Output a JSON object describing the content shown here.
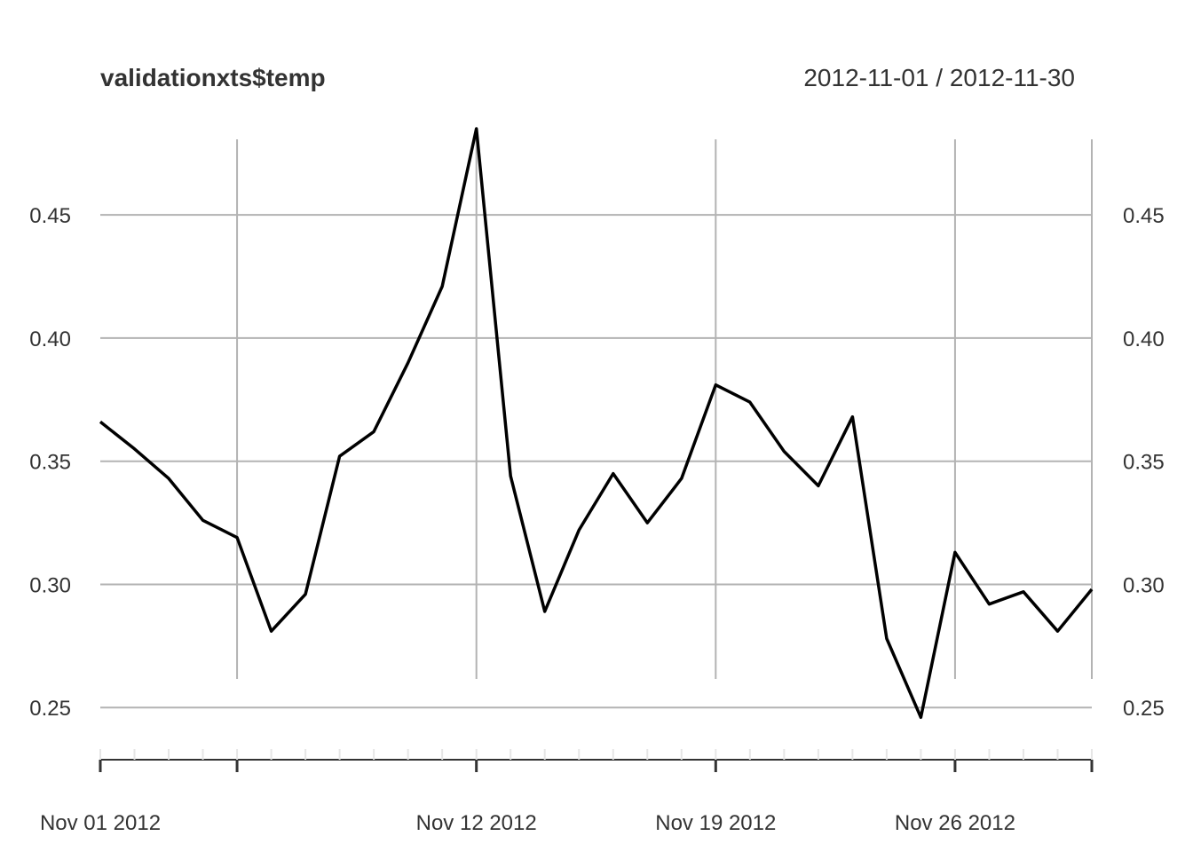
{
  "chart_data": {
    "type": "line",
    "title": "validationxts$temp",
    "date_range_label": "2012-11-01 / 2012-11-30",
    "xlabel": "",
    "ylabel": "",
    "ylim": [
      0.24,
      0.485
    ],
    "y_ticks": [
      0.25,
      0.3,
      0.35,
      0.4,
      0.45
    ],
    "y_tick_labels": [
      "0.25",
      "0.30",
      "0.35",
      "0.40",
      "0.45"
    ],
    "x_range": [
      "2012-11-01",
      "2012-11-30"
    ],
    "x_major_ticks": [
      "2012-11-01",
      "2012-11-05",
      "2012-11-12",
      "2012-11-19",
      "2012-11-26",
      "2012-11-30"
    ],
    "x_tick_labels": [
      {
        "date": "2012-11-01",
        "label": "Nov 01 2012"
      },
      {
        "date": "2012-11-12",
        "label": "Nov 12 2012"
      },
      {
        "date": "2012-11-19",
        "label": "Nov 19 2012"
      },
      {
        "date": "2012-11-26",
        "label": "Nov 26 2012"
      }
    ],
    "grid": true,
    "series": [
      {
        "color": "#000000",
        "x": [
          "2012-11-01",
          "2012-11-02",
          "2012-11-03",
          "2012-11-04",
          "2012-11-05",
          "2012-11-06",
          "2012-11-07",
          "2012-11-08",
          "2012-11-09",
          "2012-11-10",
          "2012-11-11",
          "2012-11-12",
          "2012-11-13",
          "2012-11-14",
          "2012-11-15",
          "2012-11-16",
          "2012-11-17",
          "2012-11-18",
          "2012-11-19",
          "2012-11-20",
          "2012-11-21",
          "2012-11-22",
          "2012-11-23",
          "2012-11-24",
          "2012-11-25",
          "2012-11-26",
          "2012-11-27",
          "2012-11-28",
          "2012-11-29",
          "2012-11-30"
        ],
        "values": [
          0.366,
          0.355,
          0.343,
          0.326,
          0.319,
          0.281,
          0.296,
          0.352,
          0.362,
          0.39,
          0.421,
          0.485,
          0.344,
          0.289,
          0.322,
          0.345,
          0.325,
          0.343,
          0.381,
          0.374,
          0.354,
          0.34,
          0.368,
          0.278,
          0.246,
          0.313,
          0.292,
          0.297,
          0.281,
          0.298
        ]
      }
    ]
  },
  "colors": {
    "grid": "#b3b3b3",
    "axis": "#333333",
    "line": "#000000",
    "text": "#333333"
  }
}
